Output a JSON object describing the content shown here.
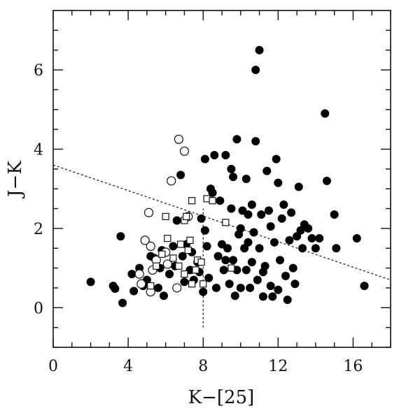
{
  "chart_data": {
    "type": "scatter",
    "xlabel": "K−[25]",
    "ylabel": "J−K",
    "xlim": [
      0,
      18
    ],
    "ylim": [
      -1,
      7.5
    ],
    "xticks": [
      0,
      4,
      8,
      12,
      16
    ],
    "yticks": [
      0,
      2,
      4,
      6
    ],
    "grid": false,
    "series": [
      {
        "marker": "filled-circle",
        "points": [
          [
            2.0,
            0.65
          ],
          [
            3.2,
            0.55
          ],
          [
            3.3,
            0.48
          ],
          [
            3.6,
            1.8
          ],
          [
            3.7,
            0.12
          ],
          [
            4.2,
            0.85
          ],
          [
            4.3,
            0.42
          ],
          [
            4.6,
            1.0
          ],
          [
            4.8,
            0.55
          ],
          [
            5.0,
            0.7
          ],
          [
            5.2,
            1.3
          ],
          [
            5.4,
            1.25
          ],
          [
            5.6,
            0.5
          ],
          [
            5.7,
            1.0
          ],
          [
            5.8,
            1.45
          ],
          [
            5.9,
            0.3
          ],
          [
            6.0,
            1.4
          ],
          [
            6.2,
            0.85
          ],
          [
            6.4,
            1.55
          ],
          [
            6.5,
            1.05
          ],
          [
            6.6,
            2.2
          ],
          [
            6.8,
            3.35
          ],
          [
            6.9,
            1.3
          ],
          [
            7.0,
            0.65
          ],
          [
            7.1,
            1.6
          ],
          [
            7.3,
            0.95
          ],
          [
            7.4,
            1.4
          ],
          [
            7.5,
            0.7
          ],
          [
            7.7,
            1.15
          ],
          [
            7.8,
            0.9
          ],
          [
            7.9,
            2.25
          ],
          [
            8.0,
            0.4
          ],
          [
            8.1,
            1.95
          ],
          [
            8.1,
            3.75
          ],
          [
            8.2,
            1.55
          ],
          [
            8.3,
            0.75
          ],
          [
            8.4,
            3.0
          ],
          [
            8.5,
            2.9
          ],
          [
            8.6,
            3.85
          ],
          [
            8.7,
            0.5
          ],
          [
            8.8,
            1.3
          ],
          [
            8.9,
            2.7
          ],
          [
            9.0,
            1.6
          ],
          [
            9.1,
            0.95
          ],
          [
            9.2,
            3.85
          ],
          [
            9.3,
            1.5
          ],
          [
            9.4,
            0.6
          ],
          [
            9.5,
            2.5
          ],
          [
            9.5,
            3.5
          ],
          [
            9.6,
            1.2
          ],
          [
            9.6,
            3.3
          ],
          [
            9.7,
            0.3
          ],
          [
            9.8,
            4.25
          ],
          [
            9.8,
            0.95
          ],
          [
            9.9,
            1.85
          ],
          [
            10.0,
            2.0
          ],
          [
            10.0,
            0.5
          ],
          [
            10.1,
            2.45
          ],
          [
            10.2,
            1.5
          ],
          [
            10.3,
            3.25
          ],
          [
            10.3,
            0.95
          ],
          [
            10.4,
            2.35
          ],
          [
            10.5,
            0.5
          ],
          [
            10.6,
            1.15
          ],
          [
            10.6,
            2.6
          ],
          [
            10.7,
            1.9
          ],
          [
            10.8,
            4.2
          ],
          [
            10.8,
            6.0
          ],
          [
            10.9,
            0.7
          ],
          [
            11.0,
            6.5
          ],
          [
            11.0,
            1.5
          ],
          [
            11.1,
            2.35
          ],
          [
            11.2,
            0.9
          ],
          [
            11.2,
            0.28
          ],
          [
            11.3,
            1.05
          ],
          [
            11.4,
            3.45
          ],
          [
            11.5,
            2.45
          ],
          [
            11.6,
            0.55
          ],
          [
            11.7,
            0.28
          ],
          [
            11.8,
            1.65
          ],
          [
            11.9,
            3.75
          ],
          [
            12.0,
            0.45
          ],
          [
            12.1,
            1.2
          ],
          [
            12.2,
            2.25
          ],
          [
            12.3,
            2.6
          ],
          [
            12.4,
            0.8
          ],
          [
            12.5,
            0.2
          ],
          [
            12.6,
            1.7
          ],
          [
            12.7,
            2.4
          ],
          [
            12.8,
            1.0
          ],
          [
            12.9,
            0.6
          ],
          [
            13.0,
            1.8
          ],
          [
            13.1,
            3.05
          ],
          [
            13.2,
            1.95
          ],
          [
            13.3,
            1.5
          ],
          [
            13.4,
            2.1
          ],
          [
            13.6,
            2.0
          ],
          [
            13.8,
            1.75
          ],
          [
            14.0,
            1.5
          ],
          [
            14.2,
            1.75
          ],
          [
            14.5,
            4.9
          ],
          [
            14.6,
            3.2
          ],
          [
            15.0,
            2.35
          ],
          [
            15.1,
            1.5
          ],
          [
            16.2,
            1.75
          ],
          [
            16.6,
            0.55
          ],
          [
            9.2,
            1.2
          ],
          [
            10.4,
            1.65
          ],
          [
            11.6,
            2.05
          ],
          [
            12.0,
            3.15
          ]
        ]
      },
      {
        "marker": "open-circle",
        "points": [
          [
            4.6,
            0.85
          ],
          [
            4.7,
            0.6
          ],
          [
            4.9,
            1.7
          ],
          [
            5.1,
            2.4
          ],
          [
            5.2,
            0.4
          ],
          [
            5.2,
            1.55
          ],
          [
            5.3,
            0.95
          ],
          [
            5.5,
            1.2
          ],
          [
            6.0,
            1.4
          ],
          [
            6.1,
            1.1
          ],
          [
            6.3,
            3.2
          ],
          [
            6.6,
            0.5
          ],
          [
            6.7,
            4.25
          ],
          [
            7.0,
            3.95
          ],
          [
            7.2,
            2.3
          ]
        ]
      },
      {
        "marker": "open-square",
        "points": [
          [
            5.2,
            0.55
          ],
          [
            5.5,
            1.05
          ],
          [
            5.8,
            1.35
          ],
          [
            6.0,
            2.3
          ],
          [
            6.1,
            1.75
          ],
          [
            6.4,
            1.25
          ],
          [
            6.7,
            1.05
          ],
          [
            6.8,
            1.6
          ],
          [
            7.0,
            0.85
          ],
          [
            7.0,
            2.2
          ],
          [
            7.1,
            2.3
          ],
          [
            7.2,
            1.45
          ],
          [
            7.3,
            1.7
          ],
          [
            7.4,
            2.7
          ],
          [
            7.4,
            0.6
          ],
          [
            7.6,
            0.95
          ],
          [
            7.7,
            1.2
          ],
          [
            7.9,
            1.15
          ],
          [
            8.0,
            0.6
          ],
          [
            8.2,
            2.75
          ],
          [
            8.5,
            2.7
          ],
          [
            9.2,
            2.15
          ],
          [
            9.5,
            1.0
          ]
        ]
      }
    ],
    "guide_lines": [
      {
        "style": "dotted",
        "from": [
          0,
          3.6
        ],
        "to": [
          18,
          0.7
        ]
      },
      {
        "style": "dotted",
        "from": [
          8,
          -0.5
        ],
        "to": [
          8,
          2.5
        ]
      }
    ]
  }
}
